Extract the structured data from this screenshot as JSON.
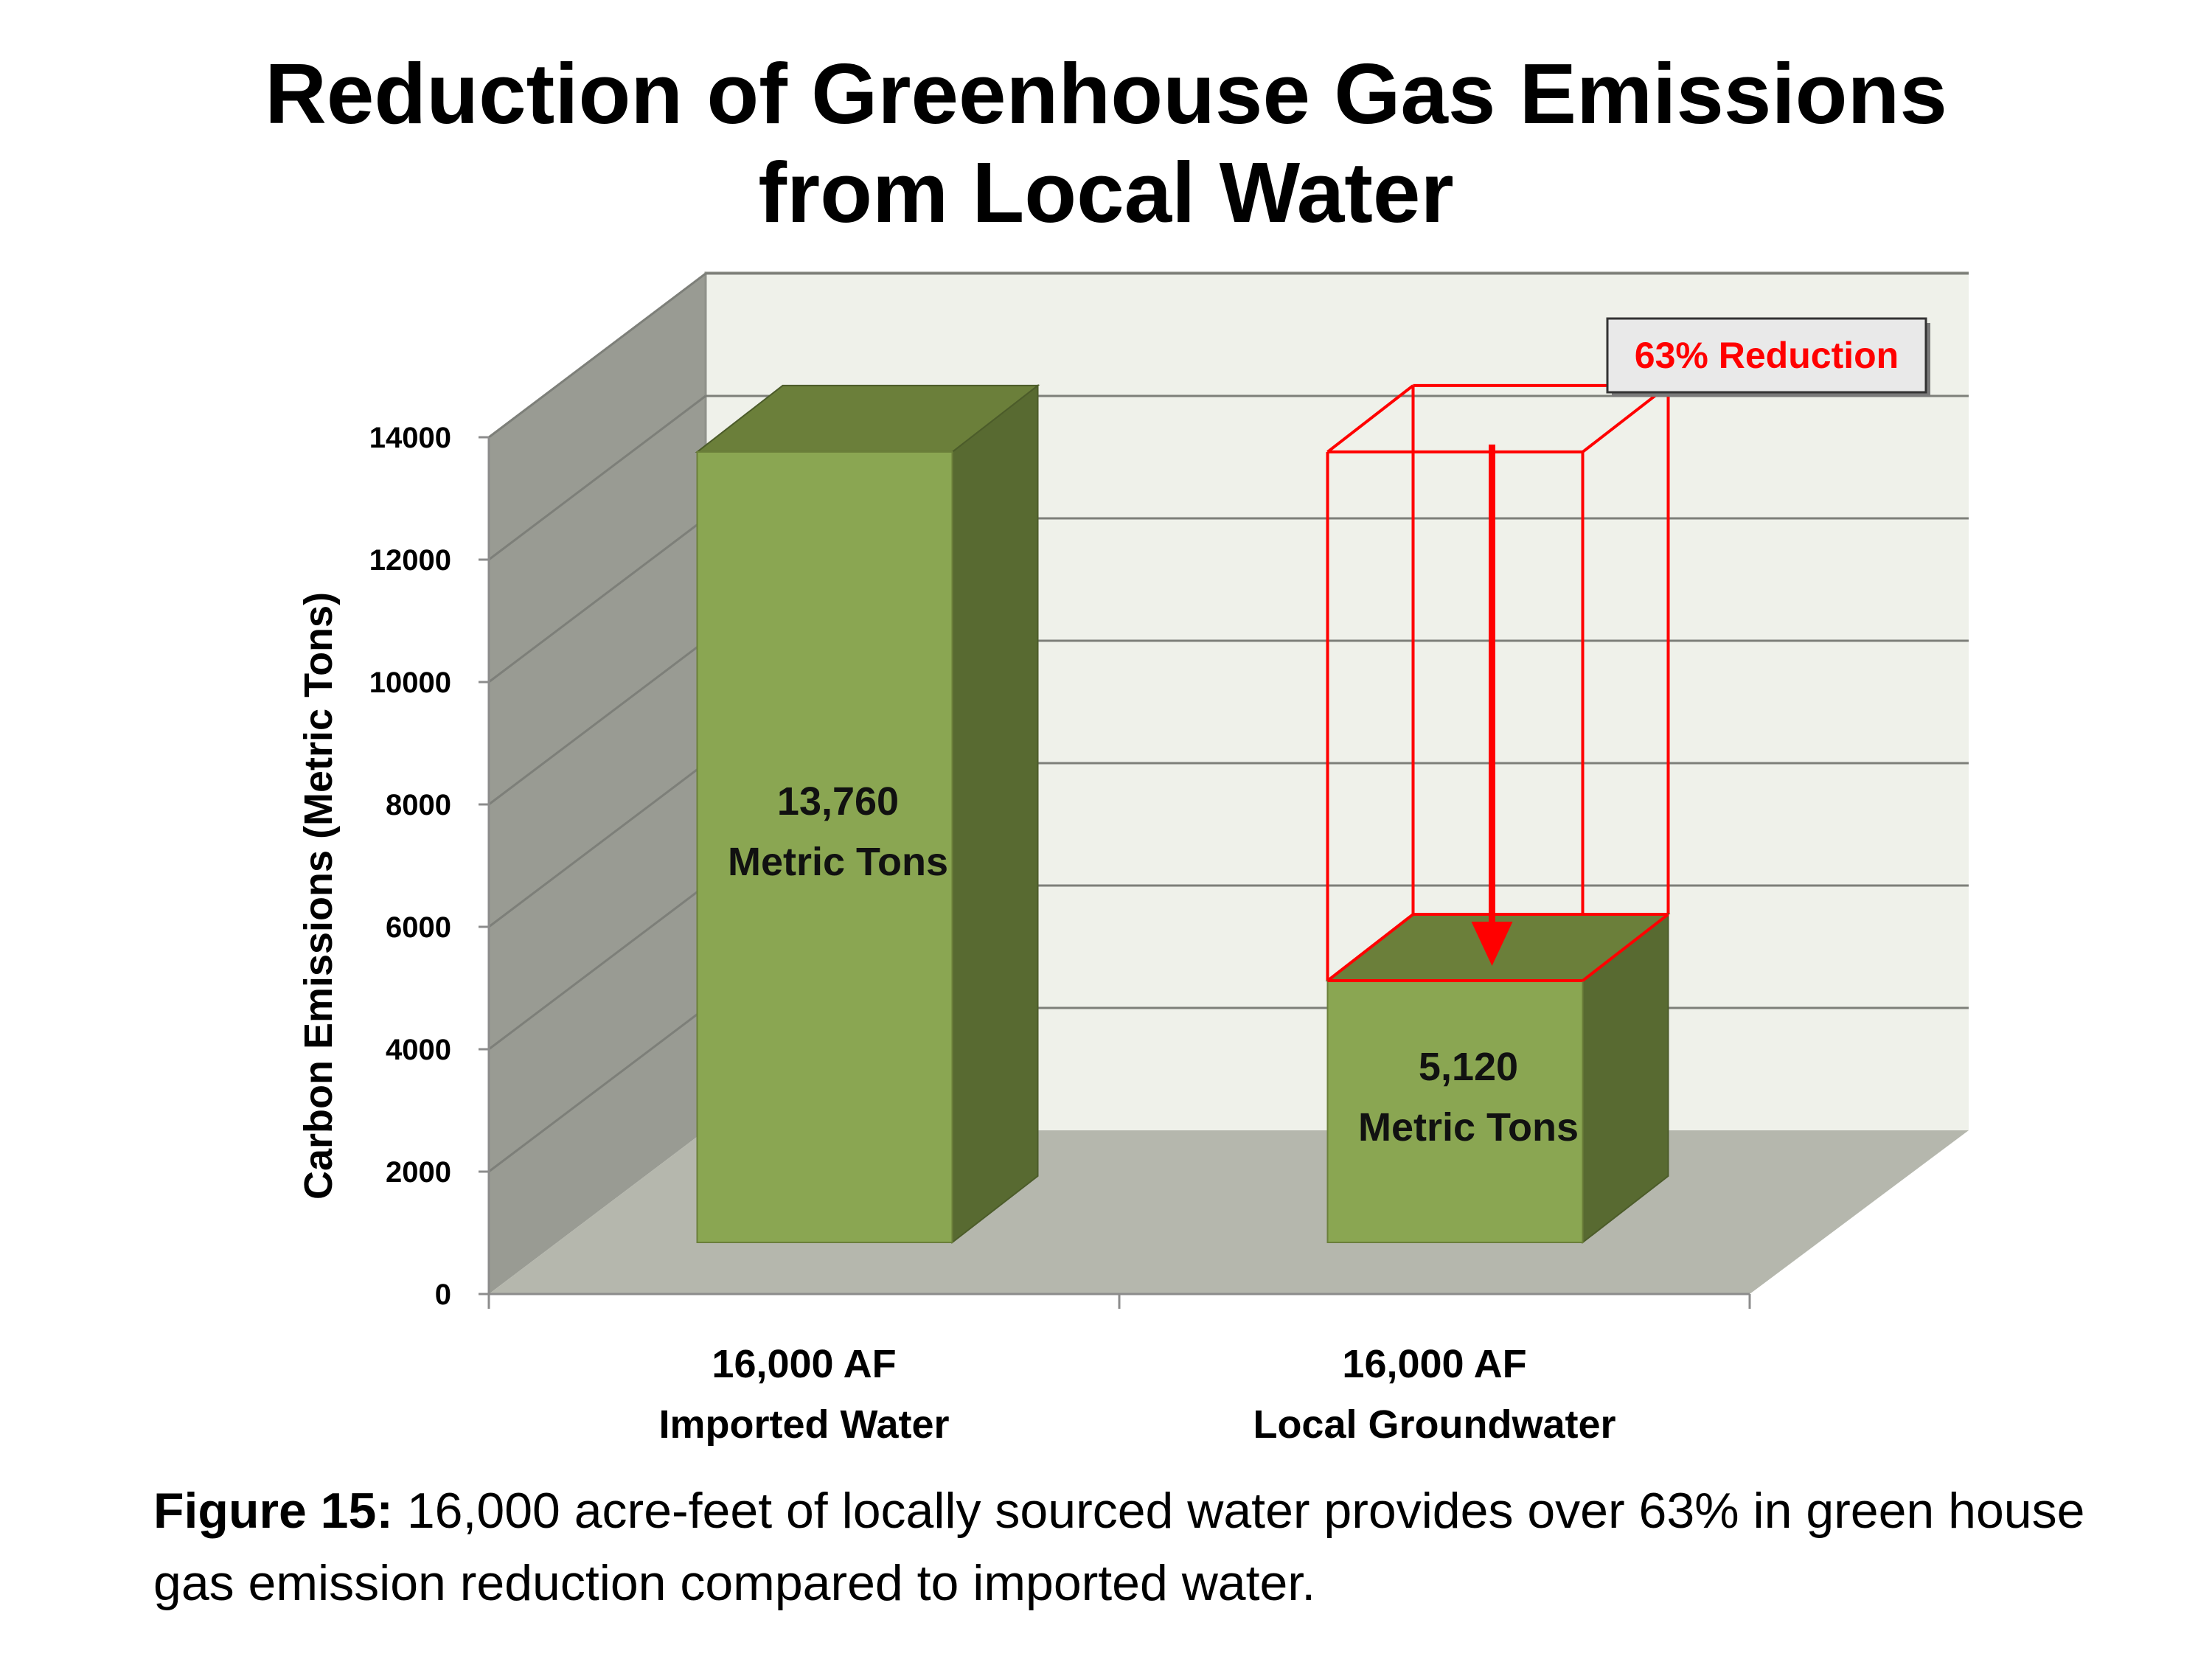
{
  "title": {
    "line1": "Reduction of Greenhouse Gas Emissions",
    "line2": "from Local Water"
  },
  "chart_data": {
    "type": "bar",
    "style": "3d-column",
    "categories": [
      [
        "16,000 AF",
        "Imported Water"
      ],
      [
        "16,000 AF",
        "Local Groundwater"
      ]
    ],
    "values": [
      13760,
      5120
    ],
    "data_labels": [
      [
        "13,760",
        "Metric Tons"
      ],
      [
        "5,120",
        "Metric Tons"
      ]
    ],
    "ylabel": "Carbon Emissions (Metric Tons)",
    "xlabel": "",
    "ylim": [
      0,
      14000
    ],
    "yticks": [
      "0",
      "2000",
      "4000",
      "6000",
      "8000",
      "10000",
      "12000",
      "14000"
    ],
    "grid": true,
    "annotation": {
      "text": "63% Reduction",
      "reference_value": 13760,
      "target_category": 1
    },
    "colors": {
      "bar_front": "#8aa652",
      "bar_top": "#6b7f3a",
      "bar_side": "#586a31",
      "back_wall": "#eff1ea",
      "side_wall": "#999b93",
      "floor": "#b5b7ad",
      "annotation": "#ff0000"
    }
  },
  "caption": {
    "label": "Figure 15:",
    "text": " 16,000 acre-feet of locally sourced water provides over 63% in green house gas emission reduction compared to imported water."
  }
}
